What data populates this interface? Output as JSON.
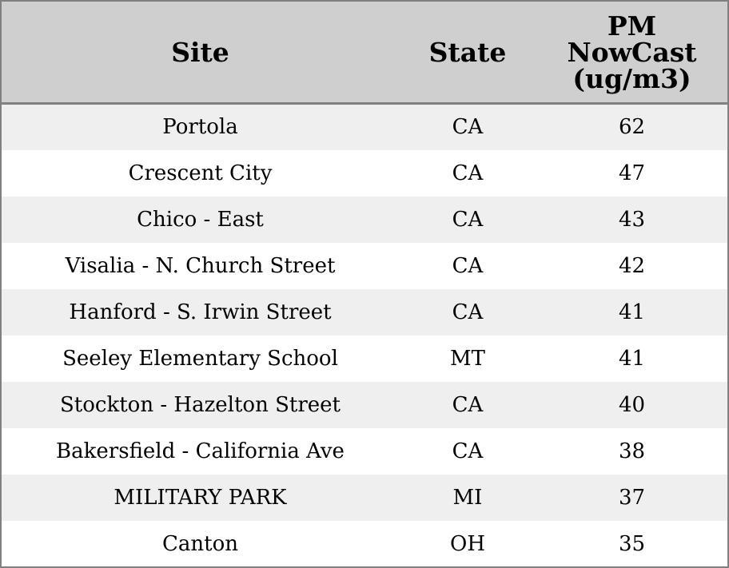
{
  "chart_data": {
    "type": "table",
    "columns": [
      "Site",
      "State",
      "PM NowCast (ug/m3)"
    ],
    "rows": [
      [
        "Portola",
        "CA",
        "62"
      ],
      [
        "Crescent City",
        "CA",
        "47"
      ],
      [
        "Chico - East",
        "CA",
        "43"
      ],
      [
        "Visalia - N. Church Street",
        "CA",
        "42"
      ],
      [
        "Hanford - S. Irwin Street",
        "CA",
        "41"
      ],
      [
        "Seeley Elementary School",
        "MT",
        "41"
      ],
      [
        "Stockton - Hazelton Street",
        "CA",
        "40"
      ],
      [
        "Bakersfield - California Ave",
        "CA",
        "38"
      ],
      [
        "MILITARY PARK",
        "MI",
        "37"
      ],
      [
        "Canton",
        "OH",
        "35"
      ]
    ]
  },
  "header_pm_lines": [
    "PM",
    "NowCast",
    "(ug/m3)"
  ],
  "colors": {
    "header_bg": "#cfcfcf",
    "row_alt_bg": "#efefef",
    "row_bg": "#ffffff",
    "border": "#808080"
  }
}
